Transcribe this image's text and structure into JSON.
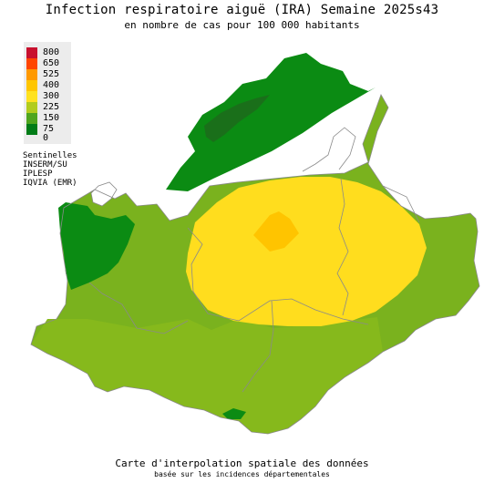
{
  "header": {
    "title": "Infection respiratoire aiguë (IRA) Semaine 2025s43",
    "subtitle": "en nombre de cas pour 100 000 habitants"
  },
  "legend": {
    "items": [
      {
        "label": "800",
        "color": "#c8102e"
      },
      {
        "label": "650",
        "color": "#ff4500"
      },
      {
        "label": "525",
        "color": "#ff9900"
      },
      {
        "label": "400",
        "color": "#ffc600"
      },
      {
        "label": "300",
        "color": "#ffe21f"
      },
      {
        "label": "225",
        "color": "#b2cc1d"
      },
      {
        "label": "150",
        "color": "#4fa51e"
      },
      {
        "label": "75",
        "color": "#017c17"
      },
      {
        "label": "0",
        "color": "#ffffff"
      }
    ]
  },
  "sources": [
    "Sentinelles",
    "INSERM/SU",
    "IPLESP",
    "IQVIA (EMR)"
  ],
  "footer": {
    "line1": "Carte d'interpolation spatiale des données",
    "line2": "basée sur les incidences départementales"
  },
  "colors": {
    "dark_green": "#1a7a1a",
    "green": "#0b8b13",
    "light_green": "#7ab21e",
    "yellow_green": "#86b91c",
    "yellow": "#ffdd1e",
    "orange_yellow": "#ffc400",
    "boundary": "#8a8a8a"
  }
}
